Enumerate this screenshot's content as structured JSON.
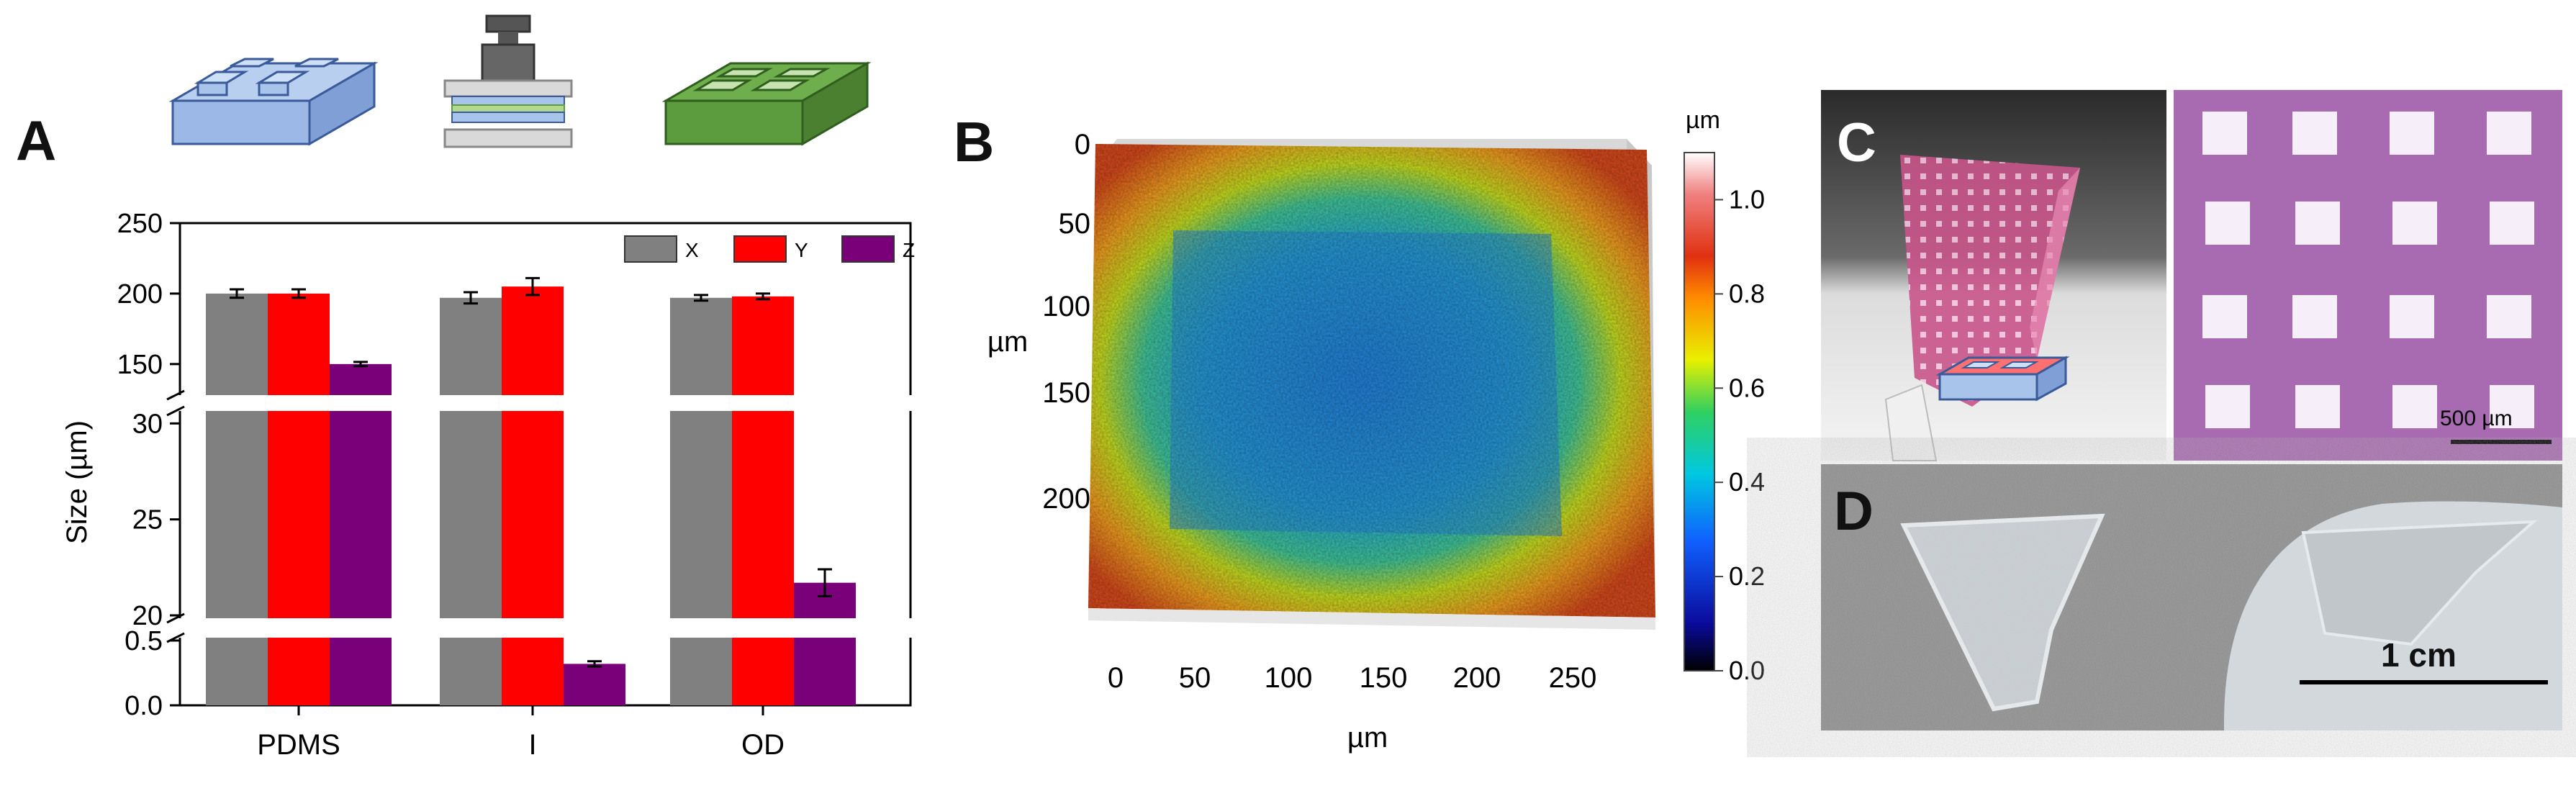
{
  "panels": {
    "a": {
      "letter": "A"
    },
    "b": {
      "letter": "B"
    },
    "c": {
      "letter": "C",
      "scale_bar": "500 µm"
    },
    "d": {
      "letter": "D",
      "scale_bar": "1 cm"
    }
  },
  "colors": {
    "X": "#808080",
    "Y": "#ff0000",
    "Z": "#7a007a",
    "pdms_icon": "#a9c4ea",
    "od_icon": "#5c9b3e",
    "c_slide_bg": "#3c3c3c"
  },
  "chart_data": [
    {
      "type": "bar",
      "panel": "A",
      "ylabel": "Size (µm)",
      "categories": [
        "PDMS",
        "I",
        "OD"
      ],
      "series": [
        {
          "name": "X",
          "values": [
            200,
            197,
            197
          ],
          "errors": [
            3,
            4,
            2
          ]
        },
        {
          "name": "Y",
          "values": [
            200,
            205,
            198
          ],
          "errors": [
            3,
            6,
            2
          ]
        },
        {
          "name": "Z",
          "values": [
            150,
            0.32,
            21.7
          ],
          "errors": [
            1.5,
            0.02,
            0.7
          ]
        }
      ],
      "axis_breaks": [
        {
          "range": [
            0,
            0.5
          ],
          "ticks": [
            "0.0",
            "0.5"
          ]
        },
        {
          "range": [
            20,
            30.5
          ],
          "ticks": [
            "20",
            "25",
            "30"
          ]
        },
        {
          "range": [
            130,
            250
          ],
          "ticks": [
            "150",
            "200",
            "250"
          ]
        }
      ],
      "legend": "top-right",
      "grid": false
    },
    {
      "type": "heatmap",
      "panel": "B",
      "xlabel": "µm",
      "ylabel": "µm",
      "x_ticks": [
        "0",
        "50",
        "100",
        "150",
        "200",
        "250"
      ],
      "y_ticks": [
        "0",
        "50",
        "100",
        "150",
        "200"
      ],
      "colorbar_label": "µm",
      "colorbar_ticks": [
        "0.0",
        "0.2",
        "0.4",
        "0.6",
        "0.8",
        "1.0"
      ],
      "colorbar_range": [
        0,
        1.1
      ]
    }
  ]
}
